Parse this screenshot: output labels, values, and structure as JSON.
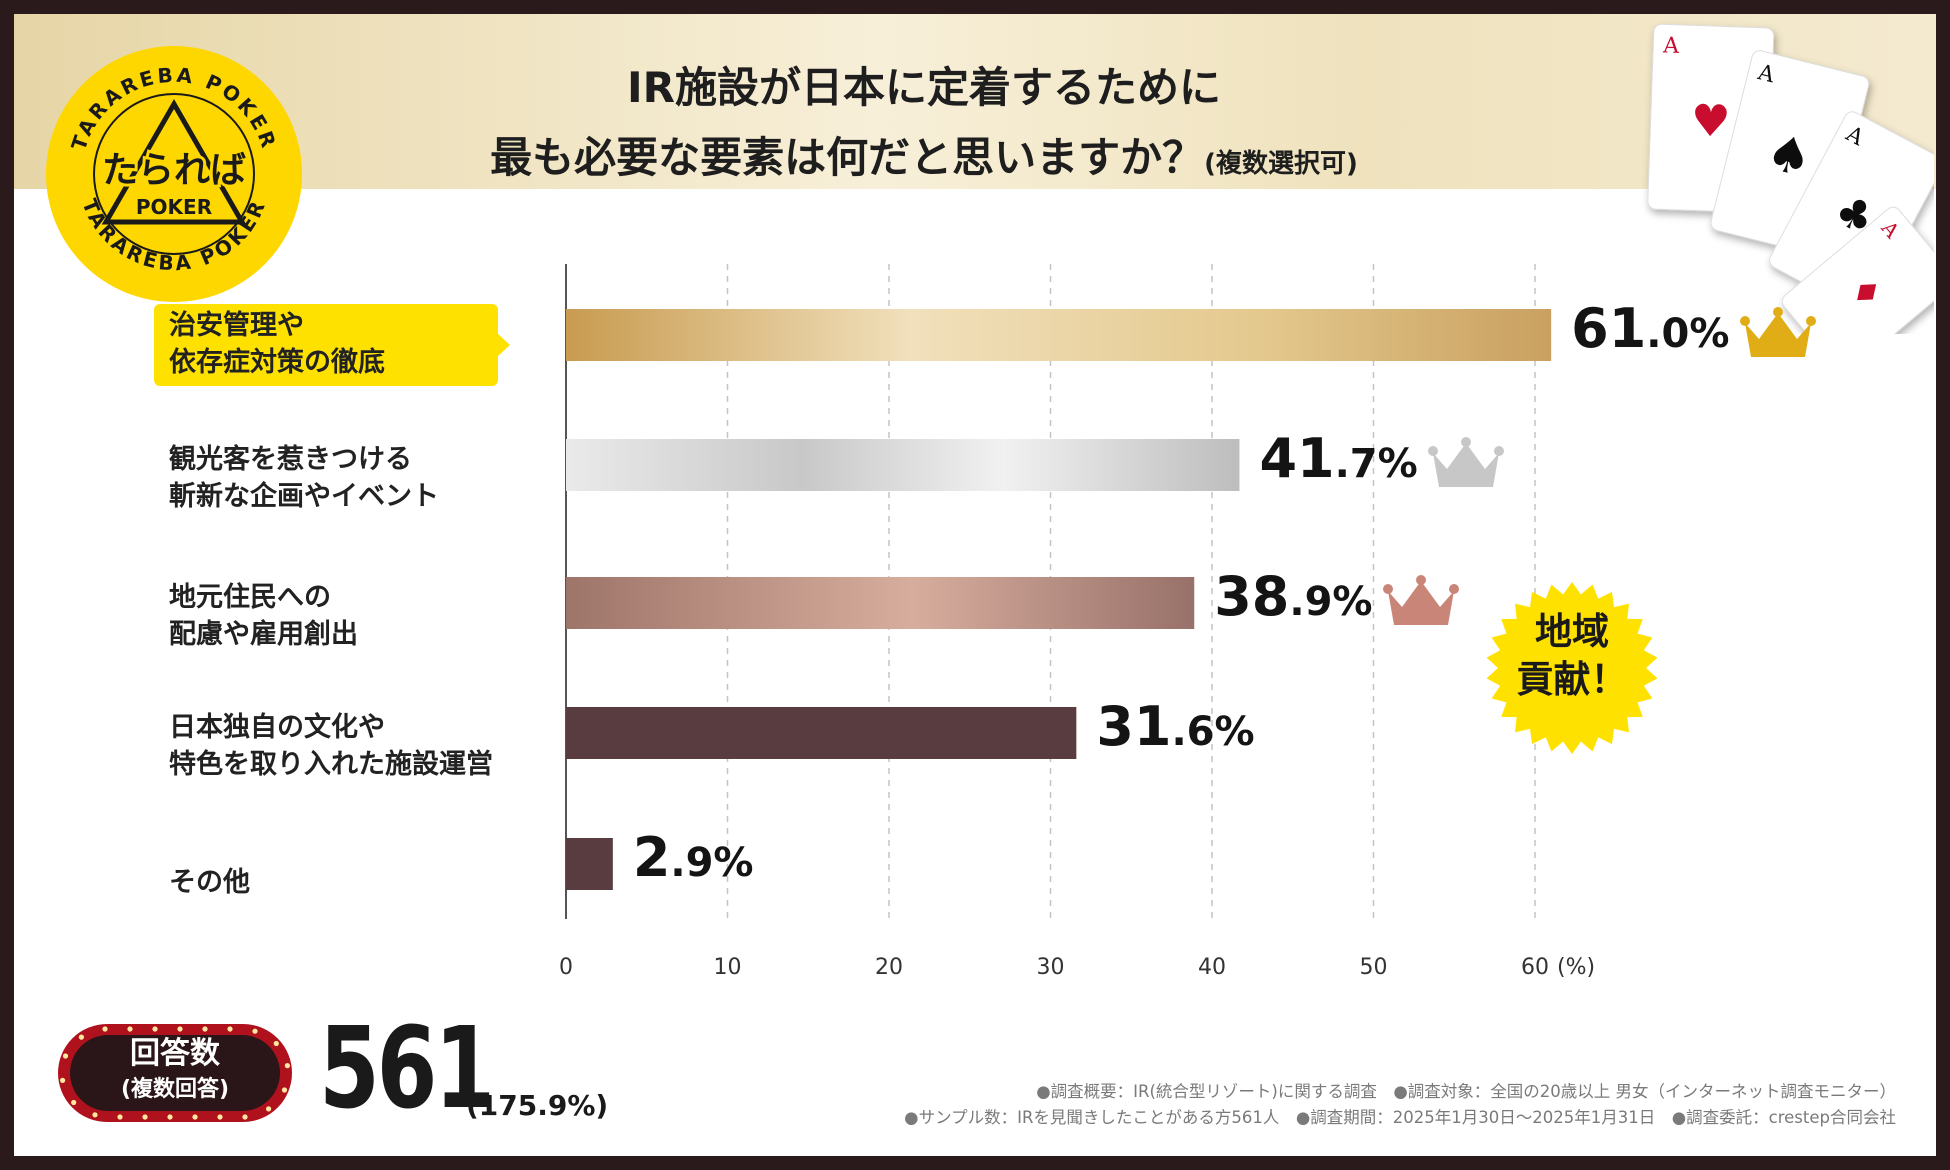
{
  "title": {
    "line1": "IR施設が日本に定着するために",
    "line2": "最も必要な要素は何だと思いますか？",
    "note": "(複数選択可)"
  },
  "logo": {
    "main": "たられば",
    "sub": "POKER",
    "ring_top": "TARAREBA POKER",
    "ring_bottom": "TARAREBA POKER"
  },
  "chart_data": {
    "type": "bar",
    "orientation": "horizontal",
    "categories": [
      [
        "治安管理や",
        "依存症対策の徹底"
      ],
      [
        "観光客を惹きつける",
        "斬新な企画やイベント"
      ],
      [
        "地元住民への",
        "配慮や雇用創出"
      ],
      [
        "日本独自の文化や",
        "特色を取り入れた施設運営"
      ],
      [
        "その他"
      ]
    ],
    "values": [
      61.0,
      41.7,
      38.9,
      31.6,
      2.9
    ],
    "value_labels": [
      {
        "int": "61",
        "dec": ".0%"
      },
      {
        "int": "41",
        "dec": ".7%"
      },
      {
        "int": "38",
        "dec": ".9%"
      },
      {
        "int": "31",
        "dec": ".6%"
      },
      {
        "int": "2",
        "dec": ".9%"
      }
    ],
    "xlim": [
      0,
      60
    ],
    "xticks": [
      0,
      10,
      20,
      30,
      40,
      50,
      60
    ],
    "xunit": "(%)",
    "grid": "vertical-dashed",
    "highlighted_index": 0,
    "crowns": [
      "gold",
      "silver",
      "bronze"
    ],
    "colors": {
      "gold": "#d4ae62",
      "silver": "#d2d2d2",
      "bronze": "#c99a86",
      "dark": "#583c40",
      "highlight": "#ffe100"
    }
  },
  "badge": {
    "line1": "地域",
    "line2": "貢献！"
  },
  "responses": {
    "label": "回答数",
    "sub": "(複数回答)",
    "count": "561",
    "pct": "(175.9%)"
  },
  "footnotes": {
    "line1": "●調査概要：IR(統合型リゾート)に関する調査　●調査対象：全国の20歳以上 男女（インターネット調査モニター）",
    "line2": "●サンプル数：IRを見聞きしたことがある方561人　●調査期間：2025年1月30日～2025年1月31日　●調査委託：crestep合同会社"
  }
}
